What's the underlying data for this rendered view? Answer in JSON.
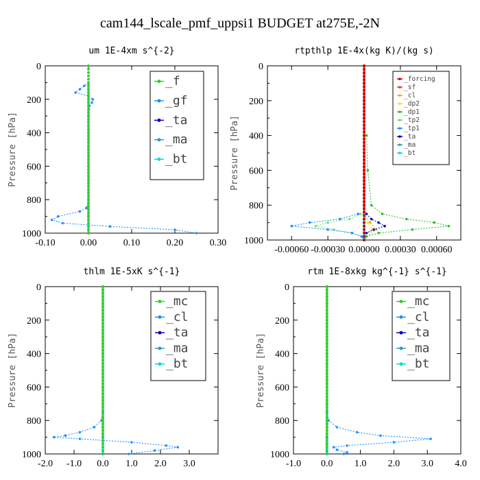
{
  "title": "cam144_lscale_pmf_uppsi1  BUDGET at275E,-2N",
  "chart_data": [
    {
      "type": "line",
      "title": "um  1E-4xm s^{-2}",
      "ylabel": "Pressure [hPa]",
      "xlim": [
        -0.1,
        0.3
      ],
      "ylim": [
        1000,
        0
      ],
      "xticks": [
        "-0.10",
        "0.00",
        "0.10",
        "0.20",
        "0.30"
      ],
      "xtick_values": [
        -0.1,
        0.0,
        0.1,
        0.2,
        0.3
      ],
      "yticks": [
        "0",
        "200",
        "400",
        "600",
        "800",
        "1000"
      ],
      "ytick_values": [
        0,
        200,
        400,
        600,
        800,
        1000
      ],
      "legend_size": "large",
      "series": [
        {
          "name": "_f",
          "color": "#33cc33",
          "p": [
            100,
            200,
            300,
            400,
            500,
            600,
            700,
            800,
            900,
            1000
          ],
          "x": [
            0,
            0,
            0,
            0,
            0,
            0,
            0,
            0,
            0,
            0
          ]
        },
        {
          "name": "_gf",
          "color": "#1e90ff",
          "p": [
            100,
            120,
            140,
            160,
            180,
            200,
            220,
            240,
            260,
            300,
            400,
            500,
            600,
            700,
            800,
            850,
            870,
            900,
            920,
            940,
            960,
            980,
            1000
          ],
          "x": [
            0.0,
            -0.01,
            -0.02,
            -0.03,
            0.0,
            0.01,
            0.008,
            0.002,
            0.001,
            0.0,
            0.0,
            0.0,
            0.0,
            0.0,
            0.0,
            -0.005,
            -0.02,
            -0.07,
            -0.085,
            -0.06,
            0.05,
            0.2,
            0.25
          ]
        },
        {
          "name": "_ta",
          "color": "#0000cc",
          "p": [
            900,
            1000
          ],
          "x": [
            0,
            0
          ]
        },
        {
          "name": "_ma",
          "color": "#3399cc",
          "p": [
            900,
            1000
          ],
          "x": [
            0,
            0
          ]
        },
        {
          "name": "_bt",
          "color": "#00dddd",
          "p": [
            900,
            1000
          ],
          "x": [
            0,
            0
          ]
        }
      ]
    },
    {
      "type": "line",
      "title": "rtpthlp  1E-4x(kg K)/(kg s)",
      "ylabel": "Pressure [hPa]",
      "xlim": [
        -0.0008,
        0.0008
      ],
      "ylim": [
        1000,
        0
      ],
      "xticks": [
        "-0.00060",
        "-0.00030",
        "0.00000",
        "0.00030",
        "0.00060"
      ],
      "xtick_values": [
        -0.0006,
        -0.0003,
        0.0,
        0.0003,
        0.0006
      ],
      "yticks": [
        "0",
        "200",
        "400",
        "600",
        "800",
        "1000"
      ],
      "ytick_values": [
        0,
        200,
        400,
        600,
        800,
        1000
      ],
      "legend_size": "small",
      "series": [
        {
          "name": "_forcing",
          "color": "#cc0000",
          "p": [
            0,
            100,
            200,
            300,
            400,
            500,
            600,
            700,
            800,
            900,
            1000
          ],
          "x": [
            0,
            0,
            0,
            0,
            0,
            0,
            0,
            0,
            0,
            0,
            0
          ]
        },
        {
          "name": "_sf",
          "color": "#ff3333",
          "p": [
            0,
            200,
            400,
            600,
            800,
            1000
          ],
          "x": [
            0,
            0,
            0,
            0,
            0,
            0
          ]
        },
        {
          "name": "_cl",
          "color": "#ffaa00",
          "p": [
            850,
            900,
            940,
            980,
            1000
          ],
          "x": [
            0,
            5e-05,
            0.0001,
            2e-05,
            0
          ]
        },
        {
          "name": "_dp2",
          "color": "#ffdd33",
          "p": [
            850,
            900,
            940,
            980,
            1000
          ],
          "x": [
            0,
            3e-05,
            6e-05,
            1e-05,
            0
          ]
        },
        {
          "name": "_dp1",
          "color": "#33bb33",
          "p": [
            400,
            600,
            800,
            850,
            880,
            900,
            920,
            940,
            960,
            980,
            1000
          ],
          "x": [
            2e-05,
            3e-05,
            6e-05,
            0.00015,
            0.00035,
            0.00058,
            0.0007,
            0.0004,
            0.00012,
            2e-05,
            0
          ]
        },
        {
          "name": "_tp2",
          "color": "#66ee66",
          "p": [
            850,
            880,
            900,
            920,
            940,
            960,
            980,
            1000
          ],
          "x": [
            -3e-05,
            -0.00012,
            -0.0003,
            -0.0004,
            -0.00025,
            -0.0001,
            -2e-05,
            0
          ]
        },
        {
          "name": "_tp1",
          "color": "#1e90ff",
          "p": [
            850,
            880,
            900,
            920,
            940,
            960,
            980,
            1000
          ],
          "x": [
            -5e-05,
            -0.0002,
            -0.00045,
            -0.0006,
            -0.0003,
            -0.0001,
            -2e-05,
            0
          ]
        },
        {
          "name": "_ta",
          "color": "#0000cc",
          "p": [
            850,
            880,
            900,
            920,
            940,
            960,
            980,
            1000
          ],
          "x": [
            2e-05,
            6e-05,
            0.00012,
            0.00017,
            8e-05,
            2e-05,
            0,
            0
          ]
        },
        {
          "name": "_ma",
          "color": "#3399cc",
          "p": [
            850,
            1000
          ],
          "x": [
            0,
            0
          ]
        },
        {
          "name": "_bt",
          "color": "#00dddd",
          "p": [
            850,
            1000
          ],
          "x": [
            0,
            0
          ]
        }
      ]
    },
    {
      "type": "line",
      "title": "thlm  1E-5xK s^{-1}",
      "ylabel": "Pressure [hPa]",
      "xlim": [
        -2.0,
        4.0
      ],
      "ylim": [
        1000,
        0
      ],
      "xticks": [
        "-2.0",
        "-1.0",
        "0.0",
        "1.0",
        "2.0",
        "3.0"
      ],
      "xtick_values": [
        -2.0,
        -1.0,
        0.0,
        1.0,
        2.0,
        3.0
      ],
      "yticks": [
        "0",
        "200",
        "400",
        "600",
        "800",
        "1000"
      ],
      "ytick_values": [
        0,
        200,
        400,
        600,
        800,
        1000
      ],
      "legend_size": "large",
      "series": [
        {
          "name": "_mc",
          "color": "#33cc33",
          "p": [
            0,
            100,
            200,
            300,
            400,
            500,
            600,
            700,
            800,
            900,
            1000
          ],
          "x": [
            0,
            0,
            0,
            0,
            0,
            0,
            0,
            0,
            0,
            0,
            0
          ]
        },
        {
          "name": "_cl",
          "color": "#1e90ff",
          "p": [
            750,
            800,
            840,
            870,
            890,
            900,
            910,
            930,
            950,
            960,
            980,
            1000
          ],
          "x": [
            0.0,
            -0.05,
            -0.3,
            -0.8,
            -1.3,
            -1.7,
            -0.8,
            1.0,
            2.2,
            2.6,
            1.8,
            0.9
          ]
        },
        {
          "name": "_ta",
          "color": "#0000cc",
          "p": [
            900,
            1000
          ],
          "x": [
            0,
            0
          ]
        },
        {
          "name": "_ma",
          "color": "#3399cc",
          "p": [
            900,
            1000
          ],
          "x": [
            0,
            0
          ]
        },
        {
          "name": "_bt",
          "color": "#00dddd",
          "p": [
            900,
            1000
          ],
          "x": [
            0,
            0
          ]
        }
      ]
    },
    {
      "type": "line",
      "title": "rtm  1E-8xkg kg^{-1} s^{-1}",
      "ylabel": "Pressure [hPa]",
      "xlim": [
        -1.0,
        4.0
      ],
      "ylim": [
        1000,
        0
      ],
      "xticks": [
        "-1.0",
        "0.0",
        "1.0",
        "2.0",
        "3.0",
        "4.0"
      ],
      "xtick_values": [
        -1.0,
        0.0,
        1.0,
        2.0,
        3.0,
        4.0
      ],
      "yticks": [
        "0",
        "200",
        "400",
        "600",
        "800",
        "1000"
      ],
      "ytick_values": [
        0,
        200,
        400,
        600,
        800,
        1000
      ],
      "legend_size": "large",
      "series": [
        {
          "name": "_mc",
          "color": "#33cc33",
          "p": [
            0,
            100,
            200,
            300,
            400,
            500,
            600,
            700,
            800,
            900,
            1000
          ],
          "x": [
            0,
            0,
            0,
            0,
            0,
            0,
            0,
            0,
            0,
            0,
            0
          ]
        },
        {
          "name": "_cl",
          "color": "#1e90ff",
          "p": [
            750,
            800,
            840,
            870,
            890,
            910,
            930,
            950,
            960,
            975,
            990,
            1000
          ],
          "x": [
            0.0,
            0.05,
            0.3,
            0.9,
            1.6,
            3.1,
            2.0,
            0.6,
            0.2,
            0.3,
            0.6,
            0.5
          ]
        },
        {
          "name": "_ta",
          "color": "#0000cc",
          "p": [
            900,
            1000
          ],
          "x": [
            0,
            0
          ]
        },
        {
          "name": "_ma",
          "color": "#3399cc",
          "p": [
            900,
            1000
          ],
          "x": [
            0,
            0
          ]
        },
        {
          "name": "_bt",
          "color": "#00dddd",
          "p": [
            900,
            1000
          ],
          "x": [
            0,
            0
          ]
        }
      ]
    }
  ]
}
